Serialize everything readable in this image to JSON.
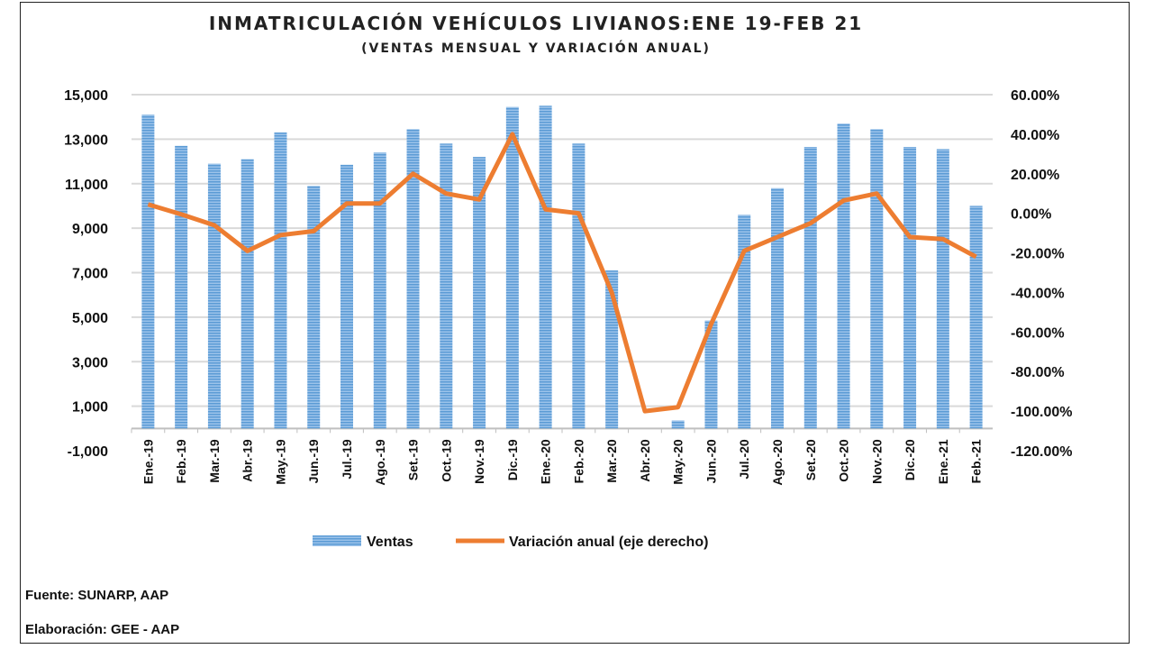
{
  "chart_data": {
    "type": "bar+line",
    "title": "INMATRICULACIÓN VEHÍCULOS LIVIANOS:ENE 19-FEB 21",
    "subtitle": "(VENTAS MENSUAL Y VARIACIÓN ANUAL)",
    "categories": [
      "Ene.-19",
      "Feb.-19",
      "Mar.-19",
      "Abr.-19",
      "May.-19",
      "Jun.-19",
      "Jul.-19",
      "Ago.-19",
      "Set.-19",
      "Oct.-19",
      "Nov.-19",
      "Dic.-19",
      "Ene.-20",
      "Feb.-20",
      "Mar.-20",
      "Abr.-20",
      "May.-20",
      "Jun.-20",
      "Jul.-20",
      "Ago.-20",
      "Set.-20",
      "Oct.-20",
      "Nov.-20",
      "Dic.-20",
      "Ene.-21",
      "Feb.-21"
    ],
    "series": [
      {
        "name": "Ventas",
        "type": "bar",
        "axis": "left",
        "color": "#6fa8dc",
        "values": [
          14100,
          12700,
          11900,
          12100,
          13300,
          10900,
          11850,
          12400,
          13450,
          12800,
          12200,
          14450,
          14500,
          12800,
          7100,
          0,
          360,
          4850,
          9600,
          10800,
          12650,
          13700,
          13450,
          12650,
          12550,
          10000
        ]
      },
      {
        "name": "Variación anual (eje derecho)",
        "type": "line",
        "axis": "right",
        "color": "#ed7d31",
        "values": [
          4.5,
          -0.5,
          -6,
          -19,
          -11,
          -9,
          5,
          5,
          20,
          10,
          7,
          40,
          2,
          0,
          -40,
          -100,
          -98,
          -56,
          -19,
          -12,
          -5,
          6.5,
          10,
          -12,
          -13,
          -22
        ]
      }
    ],
    "left_axis": {
      "ylim": [
        -1000,
        15000
      ],
      "ticks": [
        "15,000",
        "13,000",
        "11,000",
        "9,000",
        "7,000",
        "5,000",
        "3,000",
        "1,000",
        "-1,000"
      ]
    },
    "right_axis": {
      "ylim": [
        -120,
        60
      ],
      "ticks": [
        "60.00%",
        "40.00%",
        "20.00%",
        "0.00%",
        "-20.00%",
        "-40.00%",
        "-60.00%",
        "-80.00%",
        "-100.00%",
        "-120.00%"
      ]
    },
    "grid": true,
    "legend": "bottom"
  },
  "footer": {
    "source": "Fuente: SUNARP, AAP",
    "elaboration": "Elaboración: GEE - AAP"
  }
}
